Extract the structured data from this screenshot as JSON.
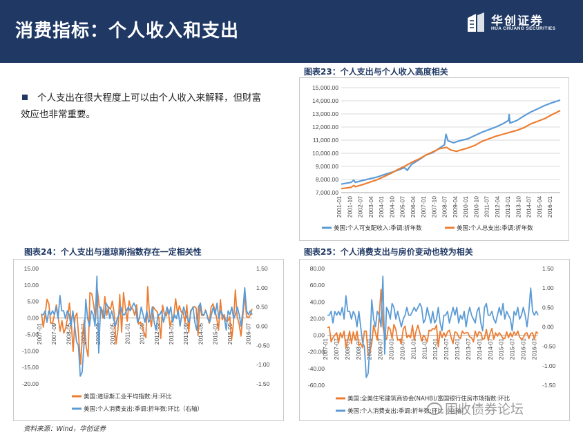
{
  "header": {
    "title": "消费指标：个人收入和支出"
  },
  "brand": {
    "name": "华创证券",
    "subtitle": "HUA CHUANG SECURITIES"
  },
  "bullet": {
    "text": "个人支出在很大程度上可以由个人收入来解释，但财富效应也非常重要。"
  },
  "source": {
    "text": "资料来源：Wind，华创证券"
  },
  "watermark": {
    "text": "固收债券论坛"
  },
  "colors": {
    "header_bg": "#1f3864",
    "series_blue": "#5b9bd5",
    "series_orange": "#ed7d31"
  },
  "chart_data": [
    {
      "id": "chart23",
      "type": "line",
      "title": "图表23：个人支出与个人收入高度相关",
      "ylim": [
        7000,
        15000
      ],
      "yticks": [
        "15,000.00",
        "14,000.00",
        "13,000.00",
        "12,000.00",
        "11,000.00",
        "10,000.00",
        "9,000.00",
        "8,000.00",
        "7,000.00"
      ],
      "xticks": [
        "2001-01",
        "2001-10",
        "2002-07",
        "2003-04",
        "2004-01",
        "2004-10",
        "2005-07",
        "2006-04",
        "2007-01",
        "2007-10",
        "2008-07",
        "2009-04",
        "2010-01",
        "2010-10",
        "2011-07",
        "2012-04",
        "2013-01",
        "2013-10",
        "2014-07",
        "2015-04",
        "2016-01"
      ],
      "xrange": [
        2001.0,
        2016.58
      ],
      "series": [
        {
          "name": "美国:个人可支配收入:季调:折年数",
          "color": "#5b9bd5",
          "points": [
            [
              2001.0,
              7650
            ],
            [
              2001.7,
              7780
            ],
            [
              2001.9,
              7950
            ],
            [
              2002.0,
              7780
            ],
            [
              2002.5,
              7920
            ],
            [
              2003.0,
              8050
            ],
            [
              2003.6,
              8200
            ],
            [
              2004.0,
              8350
            ],
            [
              2004.6,
              8550
            ],
            [
              2005.0,
              8700
            ],
            [
              2005.5,
              8900
            ],
            [
              2005.7,
              8700
            ],
            [
              2006.0,
              9150
            ],
            [
              2006.6,
              9550
            ],
            [
              2007.0,
              9850
            ],
            [
              2007.5,
              10050
            ],
            [
              2008.0,
              10400
            ],
            [
              2008.35,
              10650
            ],
            [
              2008.45,
              11450
            ],
            [
              2008.6,
              10950
            ],
            [
              2009.0,
              10800
            ],
            [
              2009.4,
              10950
            ],
            [
              2010.0,
              11100
            ],
            [
              2010.5,
              11350
            ],
            [
              2011.0,
              11600
            ],
            [
              2011.5,
              11800
            ],
            [
              2012.0,
              12000
            ],
            [
              2012.5,
              12250
            ],
            [
              2012.9,
              12500
            ],
            [
              2012.95,
              12950
            ],
            [
              2013.0,
              12300
            ],
            [
              2013.5,
              12500
            ],
            [
              2014.0,
              12850
            ],
            [
              2014.5,
              13150
            ],
            [
              2015.0,
              13400
            ],
            [
              2015.5,
              13650
            ],
            [
              2016.0,
              13850
            ],
            [
              2016.58,
              14050
            ]
          ]
        },
        {
          "name": "美国:个人总支出:季调:折年数",
          "color": "#ed7d31",
          "points": [
            [
              2001.0,
              7300
            ],
            [
              2001.7,
              7400
            ],
            [
              2001.9,
              7550
            ],
            [
              2002.0,
              7450
            ],
            [
              2002.5,
              7600
            ],
            [
              2003.0,
              7780
            ],
            [
              2003.6,
              8000
            ],
            [
              2004.0,
              8200
            ],
            [
              2004.6,
              8500
            ],
            [
              2005.0,
              8750
            ],
            [
              2005.5,
              9000
            ],
            [
              2006.0,
              9300
            ],
            [
              2006.6,
              9600
            ],
            [
              2007.0,
              9850
            ],
            [
              2007.5,
              10100
            ],
            [
              2008.0,
              10350
            ],
            [
              2008.5,
              10450
            ],
            [
              2008.8,
              10250
            ],
            [
              2009.2,
              10150
            ],
            [
              2009.5,
              10250
            ],
            [
              2010.0,
              10400
            ],
            [
              2010.5,
              10600
            ],
            [
              2011.0,
              10900
            ],
            [
              2011.5,
              11100
            ],
            [
              2012.0,
              11300
            ],
            [
              2012.5,
              11450
            ],
            [
              2013.0,
              11600
            ],
            [
              2013.5,
              11750
            ],
            [
              2014.0,
              11950
            ],
            [
              2014.5,
              12250
            ],
            [
              2015.0,
              12450
            ],
            [
              2015.5,
              12650
            ],
            [
              2016.0,
              12950
            ],
            [
              2016.58,
              13250
            ]
          ]
        }
      ],
      "legend": "bottom"
    },
    {
      "id": "chart24",
      "type": "line",
      "title": "图表24：个人支出与道琼斯指数存在一定相关性",
      "ylim": [
        -20,
        15
      ],
      "y2lim": [
        -1.5,
        1.5
      ],
      "yticks": [
        "15.00",
        "10.00",
        "5.00",
        "0.00",
        "-5.00",
        "-10.00",
        "-15.00",
        "-20.00"
      ],
      "y2ticks": [
        "1.50",
        "1.00",
        "0.50",
        "0.00",
        "-0.50",
        "-1.00",
        "-1.50"
      ],
      "xticks": [
        "2007-01",
        "2007-09",
        "2008-05",
        "2009-01",
        "2009-09",
        "2010-05",
        "2011-01",
        "2011-09",
        "2012-05",
        "2013-01",
        "2013-09",
        "2014-05",
        "2015-01",
        "2015-09",
        "2016-07"
      ],
      "xrange": [
        2007.0,
        2016.58
      ],
      "series": [
        {
          "name": "美国:道琼斯工业平均指数:月:环比",
          "color": "#ed7d31",
          "axis": "left",
          "values": [
            1.3,
            -2.8,
            1.2,
            5.7,
            4.3,
            -1.6,
            -1.5,
            1.1,
            4.0,
            0.2,
            -4.0,
            -0.8,
            -4.6,
            -3.0,
            -0.0,
            4.5,
            -1.5,
            -10.2,
            0.2,
            1.5,
            -6.0,
            -14.1,
            -5.3,
            -0.6,
            -8.8,
            -11.7,
            7.7,
            7.3,
            4.1,
            -0.6,
            8.6,
            3.5,
            2.3,
            0.0,
            6.5,
            0.8,
            3.4,
            2.6,
            5.1,
            1.4,
            -7.9,
            -3.6,
            7.1,
            -4.3,
            7.7,
            3.1,
            -1.0,
            5.2,
            2.7,
            2.8,
            0.8,
            4.0,
            -1.9,
            -1.2,
            -2.2,
            -4.4,
            -6.0,
            9.5,
            0.8,
            -2.6,
            3.4,
            2.5,
            2.0,
            0.0,
            -6.2,
            3.9,
            1.0,
            0.6,
            2.6,
            -2.5,
            -0.5,
            0.6,
            5.8,
            1.4,
            3.7,
            1.8,
            1.9,
            -1.4,
            4.0,
            -4.4,
            2.2,
            2.8,
            3.5,
            3.0,
            -5.3,
            4.0,
            0.8,
            0.7,
            2.4,
            0.7,
            -1.6,
            3.2,
            4.3,
            2.5,
            -0.0,
            -3.7,
            5.6,
            -0.6,
            1.0,
            -0.9,
            -0.9,
            0.4,
            -6.6,
            -1.5,
            8.5,
            0.3,
            -1.7,
            -5.5,
            0.3,
            7.1,
            0.5,
            0.1,
            0.8,
            2.8
          ]
        },
        {
          "name": "美国:个人消费支出:季调:折年数:环比（右轴）",
          "color": "#5b9bd5",
          "axis": "right",
          "values": [
            0.3,
            0.3,
            0.4,
            0.1,
            0.4,
            0.3,
            0.4,
            0.3,
            0.5,
            0.2,
            0.8,
            0.4,
            0.4,
            0.2,
            0.4,
            0.3,
            0.0,
            0.4,
            0.0,
            -0.4,
            -0.5,
            -1.3,
            -1.2,
            -0.5,
            0.7,
            0.2,
            0.0,
            0.4,
            0.3,
            0.0,
            1.3,
            -0.7,
            0.5,
            0.4,
            0.2,
            0.6,
            0.5,
            0.2,
            0.4,
            0.2,
            0.0,
            0.2,
            0.3,
            0.5,
            0.3,
            0.3,
            0.4,
            0.5,
            0.4,
            0.5,
            0.6,
            0.5,
            0.1,
            0.2,
            0.5,
            0.3,
            0.1,
            0.4,
            0.1,
            0.2,
            0.5,
            0.1,
            -0.1,
            0.3,
            0.3,
            0.4,
            0.1,
            0.3,
            0.5,
            0.3,
            0.5,
            0.1,
            0.3,
            0.2,
            0.4,
            0.0,
            0.3,
            0.5,
            0.3,
            0.2,
            0.1,
            0.4,
            0.5,
            0.1,
            -0.1,
            0.5,
            0.6,
            0.3,
            0.3,
            0.4,
            0.2,
            0.1,
            0.3,
            0.5,
            0.3,
            0.6,
            0.2,
            0.4,
            0.3,
            0.2,
            -0.1,
            0.4,
            0.3,
            0.5,
            0.2,
            0.3,
            0.5,
            0.3,
            0.0,
            0.4,
            1.0,
            0.4,
            0.3,
            0.4,
            0.3
          ]
        }
      ],
      "legend": "bottom"
    },
    {
      "id": "chart25",
      "type": "line",
      "title": "图表25：个人消费支出与房价变动也较为相关",
      "ylim": [
        -60,
        80
      ],
      "y2lim": [
        -1.5,
        1.5
      ],
      "yticks": [
        "80.00",
        "60.00",
        "40.00",
        "20.00",
        "0.00",
        "-20.00",
        "-40.00",
        "-60.00"
      ],
      "y2ticks": [
        "1.50",
        "1.00",
        "0.50",
        "0.00",
        "-0.50",
        "-1.00",
        "-1.50"
      ],
      "xticks": [
        "2007-01",
        "2007-07",
        "2008-01",
        "2008-07",
        "2009-01",
        "2009-07",
        "2010-01",
        "2010-07",
        "2011-01",
        "2011-07",
        "2012-01",
        "2012-07",
        "2013-01",
        "2013-07",
        "2014-01",
        "2014-07",
        "2015-01",
        "2015-07",
        "2016-01",
        "2016-07"
      ],
      "xrange": [
        2007.0,
        2016.58
      ],
      "series": [
        {
          "name": "美国:全美住宅建筑商协会(NAHB)/富国银行住房市场指数:环比",
          "color": "#ed7d31",
          "axis": "left",
          "values": [
            9,
            10,
            -8,
            -3,
            0,
            3,
            -9,
            3,
            -3,
            5,
            -15,
            -6,
            5,
            -10,
            4,
            -6,
            5,
            -12,
            -10,
            -15,
            5,
            5,
            -24,
            -20,
            -10,
            12,
            3,
            -6,
            22,
            55,
            11,
            -2,
            -5,
            10,
            7,
            -4,
            13,
            7,
            -6,
            -5,
            -10,
            7,
            11,
            -3,
            0,
            -3,
            12,
            -6,
            5,
            12,
            3,
            -7,
            0,
            -3,
            -8,
            6,
            5,
            8,
            7,
            12,
            -14,
            5,
            -3,
            3,
            -2,
            4,
            6,
            -3,
            -10,
            4,
            3,
            -2,
            -4,
            5,
            2,
            3,
            3,
            -2,
            -3,
            -8,
            5,
            -2,
            4,
            3,
            -5,
            -4,
            7,
            -6,
            2,
            8,
            -5,
            3,
            -1,
            3,
            0,
            -4,
            -4,
            4,
            -3,
            3,
            -2,
            4,
            0,
            5,
            -2,
            -5,
            -3,
            2,
            3,
            -4,
            2,
            3,
            -5,
            4,
            2
          ]
        },
        {
          "name": "美国:个人消费支出:季调:折年数:环比（右轴）",
          "color": "#5b9bd5",
          "axis": "right",
          "values": [
            0.3,
            0.3,
            0.4,
            0.1,
            0.4,
            0.3,
            0.4,
            0.3,
            0.5,
            0.2,
            0.8,
            0.4,
            0.4,
            0.2,
            0.4,
            0.3,
            0.0,
            0.4,
            0.0,
            -0.4,
            -0.5,
            -1.3,
            -1.2,
            -0.5,
            0.7,
            0.2,
            0.0,
            0.4,
            0.3,
            0.0,
            1.3,
            -0.7,
            0.5,
            0.4,
            0.2,
            0.6,
            0.5,
            0.2,
            0.4,
            0.2,
            0.0,
            0.2,
            0.3,
            0.5,
            0.3,
            0.3,
            0.4,
            0.5,
            0.4,
            0.5,
            0.6,
            0.5,
            0.1,
            0.2,
            0.5,
            0.3,
            0.1,
            0.4,
            0.1,
            0.2,
            0.5,
            0.1,
            -0.1,
            0.3,
            0.3,
            0.4,
            0.1,
            0.3,
            0.5,
            0.3,
            0.5,
            0.1,
            0.3,
            0.2,
            0.4,
            0.0,
            0.3,
            0.5,
            0.3,
            0.2,
            0.1,
            0.4,
            0.5,
            0.1,
            -0.1,
            0.5,
            0.6,
            0.3,
            0.3,
            0.4,
            0.2,
            0.1,
            0.3,
            0.5,
            0.3,
            0.6,
            0.2,
            0.4,
            0.3,
            0.2,
            -0.1,
            0.4,
            0.3,
            0.5,
            0.2,
            0.3,
            0.5,
            0.3,
            0.0,
            0.4,
            1.0,
            0.4,
            0.3,
            0.4,
            0.3
          ]
        }
      ],
      "legend": "bottom"
    }
  ]
}
